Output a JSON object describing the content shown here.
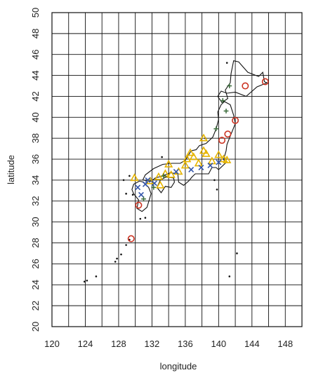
{
  "chart_data": {
    "type": "scatter",
    "title": "",
    "xlabel": "longitude",
    "ylabel": "latitude",
    "xlim": [
      120,
      150
    ],
    "ylim": [
      20,
      50
    ],
    "xticks": [
      120,
      124,
      128,
      132,
      136,
      140,
      144,
      148
    ],
    "yticks": [
      20,
      22,
      24,
      26,
      28,
      30,
      32,
      34,
      36,
      38,
      40,
      42,
      44,
      46,
      48,
      50
    ],
    "grid": true,
    "grid_step": 2,
    "colors": {
      "circle": "#cc3322",
      "triangle": "#e6b400",
      "x": "#3355aa",
      "plus": "#3a6b3a",
      "land": "#111111"
    },
    "series": [
      {
        "marker": "circle",
        "points": [
          [
            145.6,
            43.4
          ],
          [
            143.2,
            43.0
          ],
          [
            142.0,
            39.7
          ],
          [
            141.1,
            38.4
          ],
          [
            140.4,
            37.8
          ],
          [
            130.4,
            31.6
          ],
          [
            129.5,
            28.4
          ]
        ]
      },
      {
        "marker": "triangle",
        "points": [
          [
            138.2,
            38.0
          ],
          [
            136.6,
            36.6
          ],
          [
            136.2,
            36.0
          ],
          [
            137.0,
            36.2
          ],
          [
            138.5,
            36.5
          ],
          [
            140.0,
            36.4
          ],
          [
            141.0,
            35.9
          ],
          [
            137.6,
            35.6
          ],
          [
            136.0,
            35.4
          ],
          [
            135.2,
            34.8
          ],
          [
            134.3,
            34.5
          ],
          [
            133.6,
            34.6
          ],
          [
            132.8,
            34.3
          ],
          [
            131.8,
            33.9
          ],
          [
            133.0,
            33.5
          ],
          [
            134.0,
            35.5
          ],
          [
            139.2,
            35.8
          ],
          [
            140.6,
            36.0
          ],
          [
            138.2,
            36.8
          ],
          [
            129.9,
            34.2
          ]
        ]
      },
      {
        "marker": "x",
        "points": [
          [
            130.3,
            33.3
          ],
          [
            131.2,
            33.6
          ],
          [
            132.3,
            33.7
          ],
          [
            134.9,
            34.8
          ],
          [
            136.7,
            35.0
          ],
          [
            137.9,
            35.2
          ],
          [
            139.0,
            35.4
          ],
          [
            140.0,
            35.7
          ],
          [
            130.7,
            32.6
          ],
          [
            131.5,
            34.0
          ]
        ]
      },
      {
        "marker": "plus",
        "points": [
          [
            141.3,
            43.0
          ],
          [
            140.5,
            41.6
          ],
          [
            140.9,
            40.6
          ],
          [
            133.4,
            34.4
          ],
          [
            132.2,
            33.3
          ],
          [
            131.0,
            32.2
          ],
          [
            139.7,
            38.9
          ]
        ]
      }
    ]
  }
}
